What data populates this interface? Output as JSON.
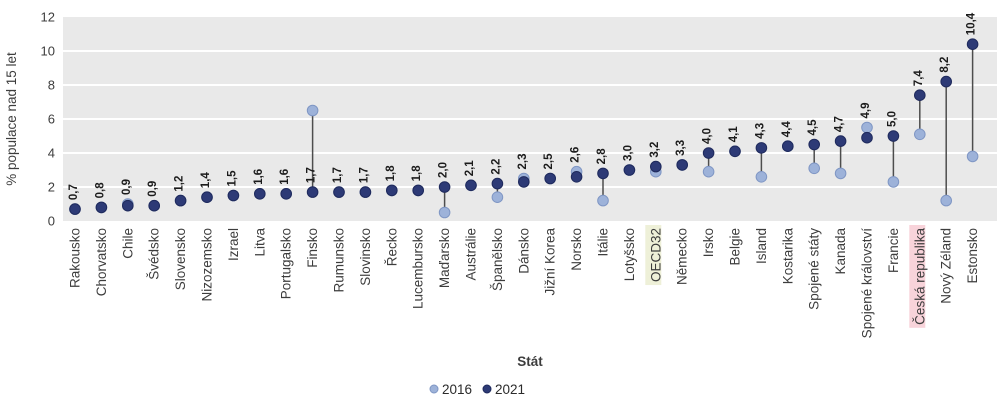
{
  "chart_data": {
    "type": "scatter",
    "subtype": "dumbbell",
    "title": "",
    "xlabel": "Stát",
    "ylabel": "% populace nad 15 let",
    "ylim": [
      0,
      12
    ],
    "yticks": [
      0,
      2,
      4,
      6,
      8,
      10,
      12
    ],
    "grid": "horizontal white gridlines on gray plot background",
    "legend_position": "bottom-center",
    "categories": [
      "Rakousko",
      "Chorvatsko",
      "Chile",
      "Švédsko",
      "Slovensko",
      "Nizozemsko",
      "Izrael",
      "Litva",
      "Portugalsko",
      "Finsko",
      "Rumunsko",
      "Slovinsko",
      "Řecko",
      "Lucembursko",
      "Maďarsko",
      "Austrálie",
      "Španělsko",
      "Dánsko",
      "Jižní Korea",
      "Norsko",
      "Itálie",
      "Lotyšsko",
      "OECD32",
      "Německo",
      "Irsko",
      "Belgie",
      "Island",
      "Kostarika",
      "Spojené státy",
      "Kanada",
      "Spojené království",
      "Francie",
      "Česká republika",
      "Nový Zéland",
      "Estonsko"
    ],
    "series": [
      {
        "name": "2016",
        "color": "#9db2d9",
        "values": [
          0.7,
          0.8,
          1.0,
          0.9,
          1.2,
          1.4,
          1.5,
          1.6,
          1.6,
          6.5,
          1.7,
          1.7,
          1.8,
          1.8,
          0.5,
          2.1,
          1.4,
          2.5,
          2.5,
          2.9,
          1.2,
          3.0,
          2.9,
          3.3,
          2.9,
          4.1,
          2.6,
          4.4,
          3.1,
          2.8,
          5.5,
          2.3,
          5.1,
          1.2,
          3.8
        ]
      },
      {
        "name": "2021",
        "color": "#2d3a76",
        "values": [
          0.7,
          0.8,
          0.9,
          0.9,
          1.2,
          1.4,
          1.5,
          1.6,
          1.6,
          1.7,
          1.7,
          1.7,
          1.8,
          1.8,
          2.0,
          2.1,
          2.2,
          2.3,
          2.5,
          2.6,
          2.8,
          3.0,
          3.2,
          3.3,
          4.0,
          4.1,
          4.3,
          4.4,
          4.5,
          4.7,
          4.9,
          5.0,
          7.4,
          8.2,
          10.4
        ]
      }
    ],
    "value_labels": [
      "0,7",
      "0,8",
      "0,9",
      "0,9",
      "1,2",
      "1,4",
      "1,5",
      "1,6",
      "1,6",
      "1,7",
      "1,7",
      "1,7",
      "1,8",
      "1,8",
      "2,0",
      "2,1",
      "2,2",
      "2,3",
      "2,5",
      "2,6",
      "2,8",
      "3,0",
      "3,2",
      "3,3",
      "4,0",
      "4,1",
      "4,3",
      "4,4",
      "4,5",
      "4,7",
      "4,9",
      "5,0",
      "7,4",
      "8,2",
      "10,4"
    ],
    "highlighted_categories": [
      {
        "category": "OECD32",
        "highlight_color": "#eef0d8"
      },
      {
        "category": "Česká republika",
        "highlight_color": "#f8d3da"
      }
    ]
  },
  "legend": {
    "items": [
      {
        "label": "2016",
        "color": "#9db2d9"
      },
      {
        "label": "2021",
        "color": "#2d3a76"
      }
    ]
  },
  "colors": {
    "plot_background": "#e9e9e9",
    "gridline": "#ffffff",
    "connector": "#4d4d4d",
    "series_2016": "#9db2d9",
    "series_2016_edge": "#7f96c4",
    "series_2021": "#2d3a76",
    "series_2021_edge": "#1f2a5c",
    "axis_text": "#3d3d3d",
    "value_label_text": "#1b1b1b"
  }
}
